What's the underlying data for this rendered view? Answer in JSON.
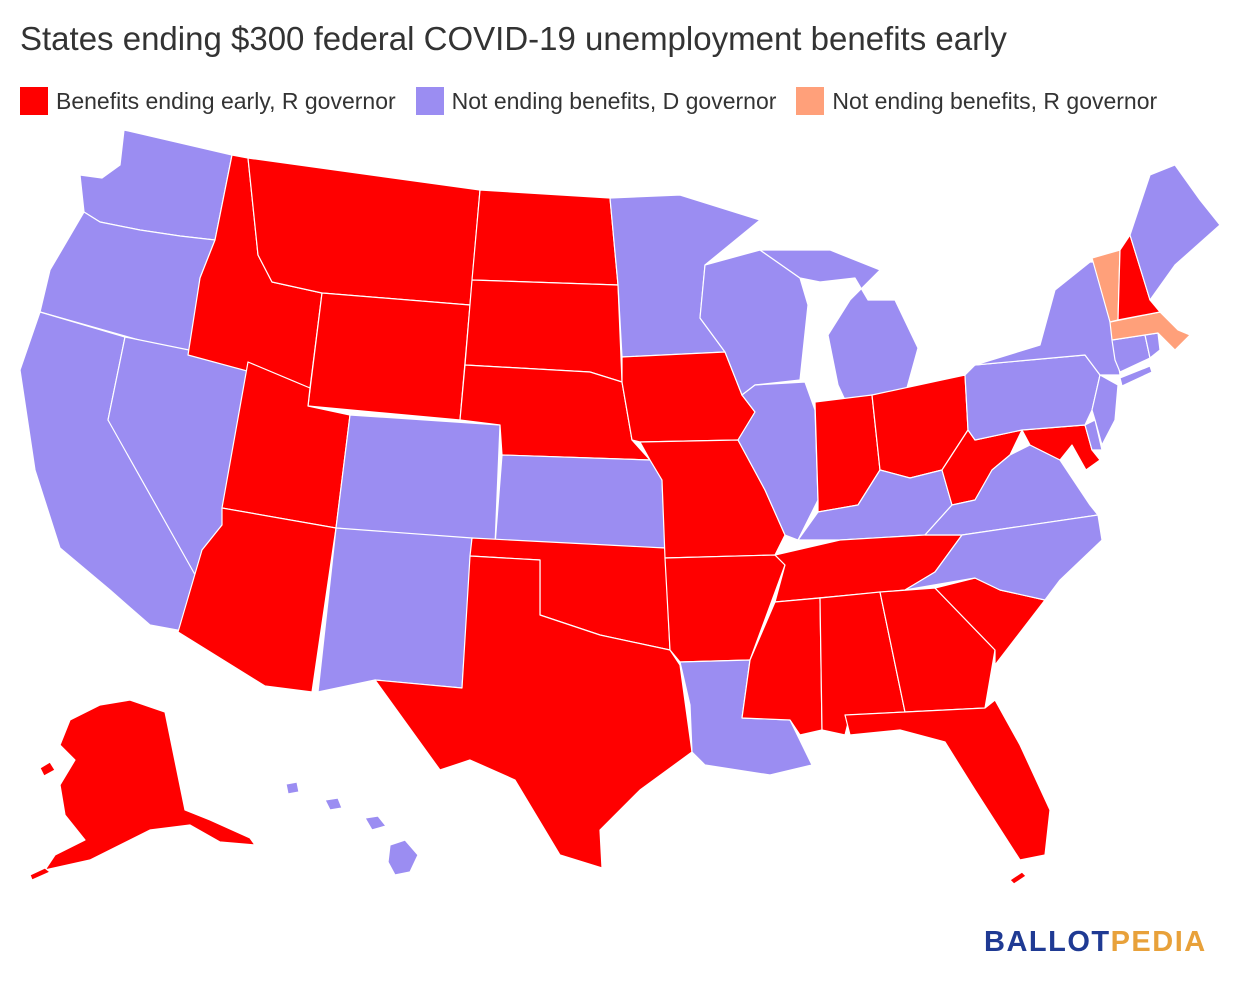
{
  "title": "States ending $300 federal COVID-19 unemployment benefits early",
  "legend": [
    {
      "label": "Benefits ending early, R governor",
      "color": "#ff0000"
    },
    {
      "label": "Not ending benefits, D governor",
      "color": "#9b8df2"
    },
    {
      "label": "Not ending benefits, R governor",
      "color": "#ffa07a"
    }
  ],
  "logo": {
    "part1": "BALLOT",
    "part2": "PEDIA"
  },
  "states": {
    "WA": "Not ending benefits, D governor",
    "OR": "Not ending benefits, D governor",
    "CA": "Not ending benefits, D governor",
    "NV": "Not ending benefits, D governor",
    "CO": "Not ending benefits, D governor",
    "NM": "Not ending benefits, D governor",
    "KS": "Not ending benefits, D governor",
    "MN": "Not ending benefits, D governor",
    "WI": "Not ending benefits, D governor",
    "MI": "Not ending benefits, D governor",
    "IL": "Not ending benefits, D governor",
    "KY": "Not ending benefits, D governor",
    "VA": "Not ending benefits, D governor",
    "NC": "Not ending benefits, D governor",
    "LA": "Not ending benefits, D governor",
    "PA": "Not ending benefits, D governor",
    "NY": "Not ending benefits, D governor",
    "NJ": "Not ending benefits, D governor",
    "DE": "Not ending benefits, D governor",
    "CT": "Not ending benefits, D governor",
    "RI": "Not ending benefits, D governor",
    "ME": "Not ending benefits, D governor",
    "HI": "Not ending benefits, D governor",
    "VT": "Not ending benefits, R governor",
    "MA": "Not ending benefits, R governor",
    "ID": "Benefits ending early, R governor",
    "MT": "Benefits ending early, R governor",
    "WY": "Benefits ending early, R governor",
    "UT": "Benefits ending early, R governor",
    "AZ": "Benefits ending early, R governor",
    "ND": "Benefits ending early, R governor",
    "SD": "Benefits ending early, R governor",
    "NE": "Benefits ending early, R governor",
    "OK": "Benefits ending early, R governor",
    "TX": "Benefits ending early, R governor",
    "IA": "Benefits ending early, R governor",
    "MO": "Benefits ending early, R governor",
    "AR": "Benefits ending early, R governor",
    "MS": "Benefits ending early, R governor",
    "AL": "Benefits ending early, R governor",
    "TN": "Benefits ending early, R governor",
    "IN": "Benefits ending early, R governor",
    "OH": "Benefits ending early, R governor",
    "WV": "Benefits ending early, R governor",
    "GA": "Benefits ending early, R governor",
    "SC": "Benefits ending early, R governor",
    "FL": "Benefits ending early, R governor",
    "MD": "Benefits ending early, R governor",
    "NH": "Benefits ending early, R governor",
    "AK": "Benefits ending early, R governor"
  }
}
